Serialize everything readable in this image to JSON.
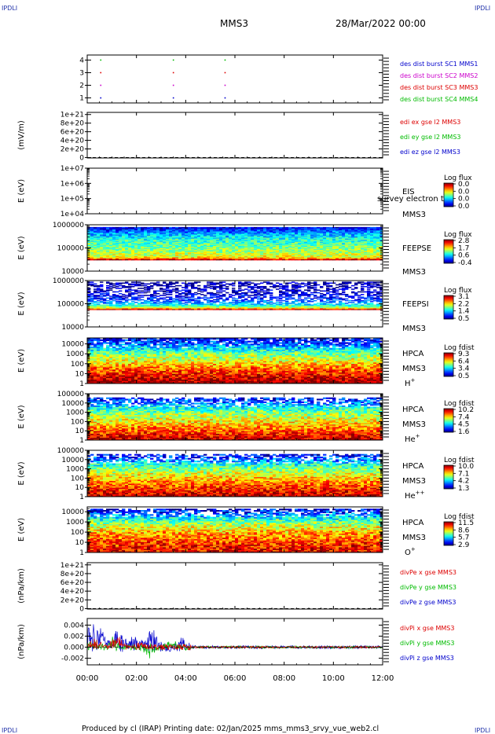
{
  "header": {
    "corner_left": "IPDLI",
    "corner_right": "IPDLI",
    "mission": "MMS3",
    "datetime": "28/Mar/2022 00:00"
  },
  "footer": {
    "text": "Produced by cl (IRAP)   Printing date: 02/Jan/2025   mms_mms3_srvy_vue_web2.cl",
    "corner_left": "IPDLI",
    "corner_right": "IPDLI"
  },
  "time_axis": {
    "ticks": [
      "00:00",
      "02:00",
      "04:00",
      "06:00",
      "08:00",
      "10:00",
      "12:00"
    ],
    "hours": [
      0,
      2,
      4,
      6,
      8,
      10,
      12
    ]
  },
  "colors": {
    "red": "#dd0000",
    "green": "#00bb00",
    "blue": "#0000cc",
    "magenta": "#cc00cc",
    "axis": "#000000"
  },
  "chart_data": [
    {
      "id": "dist",
      "type": "scatter",
      "ylabel": "",
      "ytick_labels": [
        "4",
        "3",
        "2",
        "1"
      ],
      "ytick_values": [
        4,
        3,
        2,
        1
      ],
      "ylim": [
        0.6,
        4.4
      ],
      "legend": [
        {
          "text": "des dist burst SC1 MMS1",
          "color": "#0000cc"
        },
        {
          "text": "des dist burst SC2 MMS2",
          "color": "#cc00cc"
        },
        {
          "text": "des dist burst SC3 MMS3",
          "color": "#dd0000"
        },
        {
          "text": "des dist burst SC4 MMS4",
          "color": "#00bb00"
        }
      ],
      "series": [
        {
          "sc": 4,
          "color": "#00bb00",
          "x": [
            0.55,
            3.5,
            5.6
          ]
        },
        {
          "sc": 3,
          "color": "#dd0000",
          "x": [
            0.55,
            3.5,
            5.6
          ]
        },
        {
          "sc": 2,
          "color": "#cc00cc",
          "x": [
            0.55,
            3.5,
            5.6
          ]
        },
        {
          "sc": 1,
          "color": "#0000cc",
          "x": [
            0.55,
            3.5,
            5.6
          ]
        }
      ]
    },
    {
      "id": "edi",
      "type": "line",
      "ylabel": "(mV/m)",
      "ytick_labels": [
        "1e+21",
        "8e+20",
        "6e+20",
        "4e+20",
        "2e+20",
        "0"
      ],
      "ytick_values": [
        1e+21,
        8e+20,
        6e+20,
        4e+20,
        2e+20,
        0
      ],
      "ylim": [
        -1e+19,
        1.05e+21
      ],
      "zero_line": true,
      "legend": [
        {
          "text": "edi ex gse l2 MMS3",
          "color": "#dd0000"
        },
        {
          "text": "edi ey gse l2 MMS3",
          "color": "#00bb00"
        },
        {
          "text": "edi ez gse l2 MMS3",
          "color": "#0000cc"
        }
      ]
    },
    {
      "id": "eis",
      "type": "heatmap",
      "ylabel": "E (eV)",
      "ytick_labels": [
        "1e+07",
        "1e+06",
        "1e+05",
        "1e+04"
      ],
      "ytick_values": [
        10000000.0,
        1000000.0,
        100000.0,
        10000.0
      ],
      "ylim": [
        10000.0,
        10000000.0
      ],
      "instrument": "EIS",
      "spacecraft": "MMS3",
      "overlay": "survey electron to",
      "cbar_title": "Log flux",
      "cbar_labels": [
        "0.0",
        "0.0",
        "0.0",
        "0.0"
      ],
      "empty": true
    },
    {
      "id": "feepse",
      "type": "heatmap",
      "ylabel": "E (eV)",
      "ytick_labels": [
        "1000000",
        "100000",
        "10000"
      ],
      "ytick_values": [
        1000000.0,
        100000.0,
        10000.0
      ],
      "ylim": [
        10000.0,
        1000000.0
      ],
      "instrument": "FEEPSE",
      "spacecraft": "MMS3",
      "cbar_title": "Log flux",
      "cbar_labels": [
        "2.8",
        "1.7",
        "0.6",
        "-0.4"
      ],
      "data_range": [
        30000.0,
        800000.0
      ],
      "profile": [
        [
          30000.0,
          1.0
        ],
        [
          40000.0,
          0.62
        ],
        [
          120000.0,
          0.48
        ],
        [
          250000.0,
          0.4
        ],
        [
          400000.0,
          0.3
        ],
        [
          600000.0,
          0.18
        ],
        [
          800000.0,
          0.1
        ]
      ],
      "noise": 0.12,
      "sparse": 0.0
    },
    {
      "id": "feepsi",
      "type": "heatmap",
      "ylabel": "E (eV)",
      "ytick_labels": [
        "1000000",
        "100000",
        "10000"
      ],
      "ytick_values": [
        1000000.0,
        100000.0,
        10000.0
      ],
      "ylim": [
        10000.0,
        1000000.0
      ],
      "instrument": "FEEPSI",
      "spacecraft": "MMS3",
      "cbar_title": "Log flux",
      "cbar_labels": [
        "3.1",
        "2.2",
        "1.4",
        "0.5"
      ],
      "data_range": [
        55000.0,
        900000.0
      ],
      "profile": [
        [
          55000.0,
          1.0
        ],
        [
          70000.0,
          0.55
        ],
        [
          100000.0,
          0.32
        ],
        [
          150000.0,
          0.18
        ],
        [
          250000.0,
          0.1
        ],
        [
          500000.0,
          0.05
        ],
        [
          900000.0,
          0.04
        ]
      ],
      "noise": 0.1,
      "sparse": 0.55
    },
    {
      "id": "hpca_h",
      "type": "heatmap",
      "ylabel": "E (eV)",
      "ytick_labels": [
        "10000",
        "1000",
        "100",
        "10",
        "1"
      ],
      "ytick_values": [
        10000.0,
        1000.0,
        100.0,
        10,
        1
      ],
      "ylim": [
        1,
        40000.0
      ],
      "instrument": "HPCA",
      "spacecraft": "MMS3",
      "species": "H",
      "species_sup": "+",
      "cbar_title": "Log fdist",
      "cbar_labels": [
        "9.3",
        "6.4",
        "3.4",
        "0.5"
      ],
      "data_range": [
        1,
        40000.0
      ],
      "profile": [
        [
          1,
          1.0
        ],
        [
          5,
          0.9
        ],
        [
          30,
          0.78
        ],
        [
          200,
          0.62
        ],
        [
          800,
          0.52
        ],
        [
          3000,
          0.38
        ],
        [
          10000,
          0.22
        ],
        [
          40000,
          0.1
        ]
      ],
      "noise": 0.14,
      "sparse": 0.2
    },
    {
      "id": "hpca_he",
      "type": "heatmap",
      "ylabel": "E (eV)",
      "ytick_labels": [
        "100000",
        "10000",
        "1000",
        "100",
        "10",
        "1"
      ],
      "ytick_values": [
        100000.0,
        10000.0,
        1000.0,
        100.0,
        10,
        1
      ],
      "ylim": [
        1,
        100000.0
      ],
      "instrument": "HPCA",
      "spacecraft": "MMS3",
      "species": "He",
      "species_sup": "+",
      "cbar_title": "Log fdist",
      "cbar_labels": [
        "10.2",
        "7.4",
        "4.5",
        "1.6"
      ],
      "data_range": [
        1,
        40000.0
      ],
      "profile": [
        [
          1,
          0.95
        ],
        [
          10,
          0.8
        ],
        [
          150,
          0.62
        ],
        [
          800,
          0.52
        ],
        [
          3000,
          0.4
        ],
        [
          12000,
          0.22
        ],
        [
          40000,
          0.12
        ]
      ],
      "noise": 0.14,
      "sparse": 0.45
    },
    {
      "id": "hpca_hepp",
      "type": "heatmap",
      "ylabel": "E (eV)",
      "ytick_labels": [
        "100000",
        "10000",
        "1000",
        "100",
        "10",
        "1"
      ],
      "ytick_values": [
        100000.0,
        10000.0,
        1000.0,
        100.0,
        10,
        1
      ],
      "ylim": [
        1,
        100000.0
      ],
      "instrument": "HPCA",
      "spacecraft": "MMS3",
      "species": "He",
      "species_sup": "++",
      "cbar_title": "Log fdist",
      "cbar_labels": [
        "10.0",
        "7.1",
        "4.2",
        "1.3"
      ],
      "data_range": [
        1,
        40000.0
      ],
      "profile": [
        [
          1,
          0.95
        ],
        [
          10,
          0.82
        ],
        [
          150,
          0.66
        ],
        [
          800,
          0.52
        ],
        [
          3000,
          0.4
        ],
        [
          12000,
          0.22
        ],
        [
          40000,
          0.1
        ]
      ],
      "noise": 0.14,
      "sparse": 0.5
    },
    {
      "id": "hpca_o",
      "type": "heatmap",
      "ylabel": "E (eV)",
      "ytick_labels": [
        "10000",
        "1000",
        "100",
        "10",
        "1"
      ],
      "ytick_values": [
        10000.0,
        1000.0,
        100.0,
        10,
        1
      ],
      "ylim": [
        1,
        30000.0
      ],
      "instrument": "HPCA",
      "spacecraft": "MMS3",
      "species": "O",
      "species_sup": "+",
      "cbar_title": "Log fdist",
      "cbar_labels": [
        "11.5",
        "8.6",
        "5.7",
        "2.9"
      ],
      "data_range": [
        1,
        20000.0
      ],
      "profile": [
        [
          1,
          0.9
        ],
        [
          10,
          0.82
        ],
        [
          100,
          0.7
        ],
        [
          600,
          0.55
        ],
        [
          2500,
          0.38
        ],
        [
          8000,
          0.18
        ],
        [
          20000,
          0.08
        ]
      ],
      "noise": 0.15,
      "sparse": 0.4
    },
    {
      "id": "divpe",
      "type": "line",
      "ylabel": "(nPa/km)",
      "ytick_labels": [
        "1e+21",
        "8e+20",
        "6e+20",
        "4e+20",
        "2e+20",
        "0"
      ],
      "ytick_values": [
        1e+21,
        8e+20,
        6e+20,
        4e+20,
        2e+20,
        0
      ],
      "ylim": [
        -1e+19,
        1.05e+21
      ],
      "zero_line": true,
      "legend": [
        {
          "text": "divPe x gse MMS3",
          "color": "#dd0000"
        },
        {
          "text": "divPe y gse MMS3",
          "color": "#00bb00"
        },
        {
          "text": "divPe z gse MMS3",
          "color": "#0000cc"
        }
      ]
    },
    {
      "id": "divpi",
      "type": "line",
      "ylabel": "(nPa/km)",
      "ytick_labels": [
        "0.004",
        "0.002",
        "0.000",
        "-0.002"
      ],
      "ytick_values": [
        0.004,
        0.002,
        0.0,
        -0.002
      ],
      "ylim": [
        -0.0032,
        0.0052
      ],
      "zero_line": true,
      "legend": [
        {
          "text": "divPi x gse MMS3",
          "color": "#dd0000"
        },
        {
          "text": "divPi y gse MMS3",
          "color": "#00bb00"
        },
        {
          "text": "divPi z gse MMS3",
          "color": "#0000cc"
        }
      ],
      "series": [
        {
          "name": "divPi z gse MMS3",
          "color": "#0000cc",
          "bursts": [
            [
              0.1,
              0.0042
            ],
            [
              0.55,
              0.0038
            ],
            [
              1.3,
              0.0036
            ],
            [
              1.9,
              0.0022
            ],
            [
              2.6,
              0.003
            ],
            [
              3.9,
              0.0012
            ]
          ],
          "amp": 0.0008
        },
        {
          "name": "divPi y gse MMS3",
          "color": "#00bb00",
          "bursts": [
            [
              0.35,
              0.0015
            ],
            [
              1.1,
              0.0018
            ],
            [
              2.55,
              -0.0016
            ],
            [
              3.5,
              0.001
            ]
          ],
          "amp": 0.0006
        },
        {
          "name": "divPi x gse MMS3",
          "color": "#dd0000",
          "bursts": [
            [
              0.3,
              0.0018
            ],
            [
              1.2,
              0.0022
            ],
            [
              2.2,
              0.0012
            ]
          ],
          "amp": 0.0005
        }
      ]
    }
  ]
}
